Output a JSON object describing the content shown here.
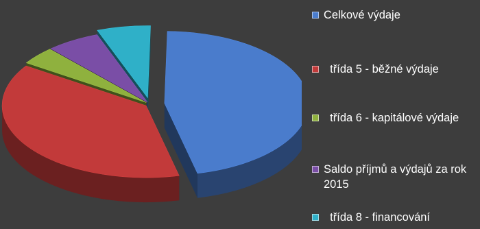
{
  "chart_data": {
    "type": "pie",
    "title": "",
    "style": "3d-exploded",
    "legend_position": "right",
    "slices": [
      {
        "label": "Celkové výdaje",
        "value": 46,
        "color": "#4a7ccc"
      },
      {
        "label": "  třída 5 - běžné výdaje",
        "value": 38,
        "color": "#c23a3a"
      },
      {
        "label": "  třída 6 - kapitálové výdaje",
        "value": 4,
        "color": "#8fb13e"
      },
      {
        "label": "Saldo příjmů a výdajů za rok 2015",
        "value": 6,
        "color": "#7a4ea6"
      },
      {
        "label": "  třída 8 - financování",
        "value": 6,
        "color": "#2fb0c8"
      }
    ]
  }
}
